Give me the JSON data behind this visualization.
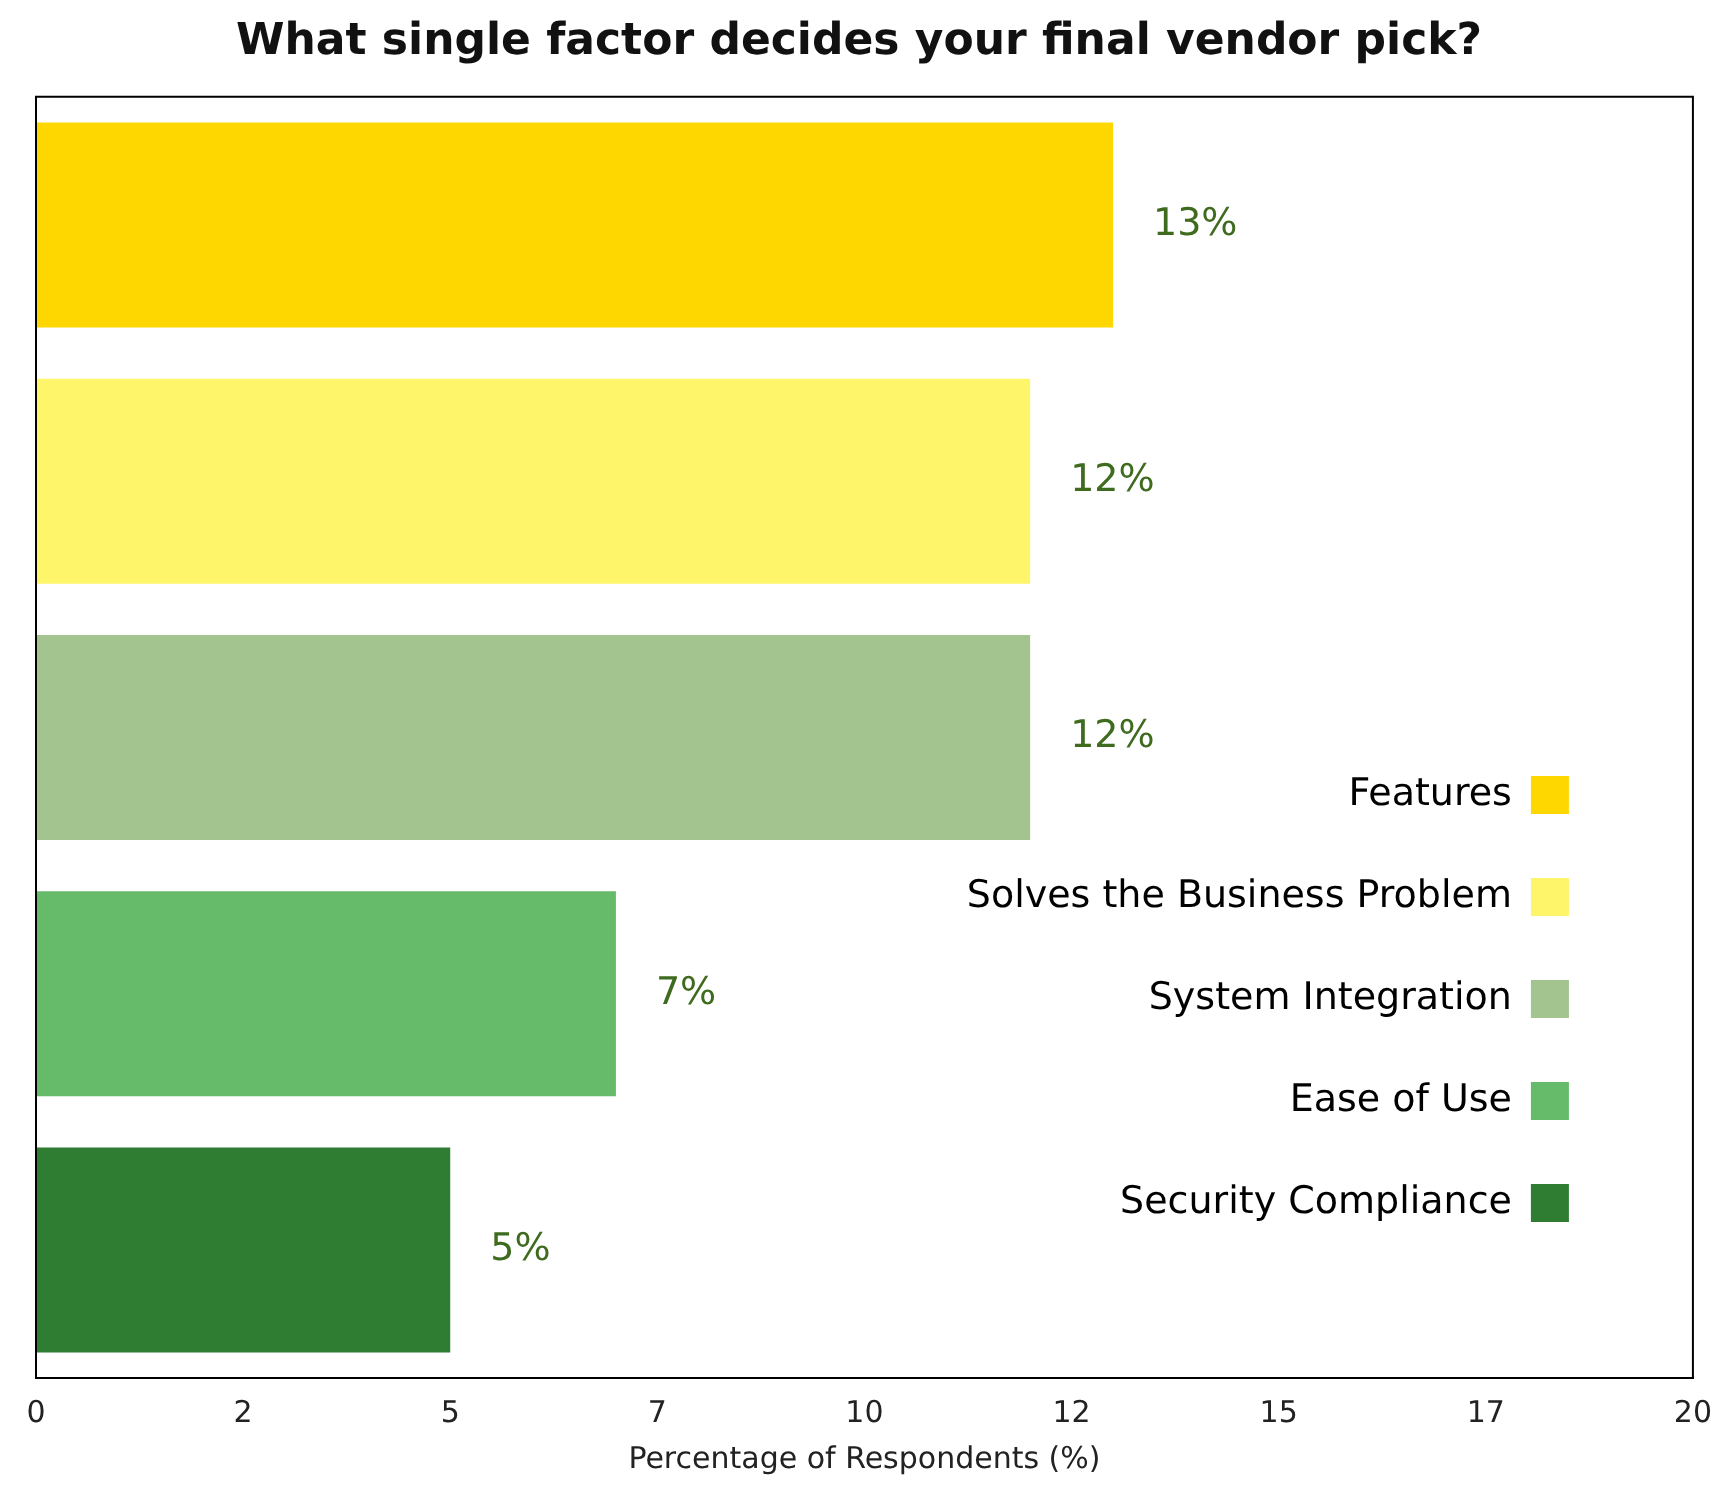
{
  "chart_data": {
    "type": "bar",
    "orientation": "horizontal",
    "title": "What single factor decides your final vendor pick?",
    "xlabel": "Percentage of Respondents (%)",
    "categories": [
      null,
      null,
      null,
      null,
      null
    ],
    "series": [
      {
        "name": "Features",
        "color": "#ffd700",
        "values": [
          13,
          null,
          null,
          null,
          null
        ],
        "value_labels": [
          "13%",
          null,
          null,
          null,
          null
        ]
      },
      {
        "name": "Solves the Business Problem",
        "color": "#fff56b",
        "values": [
          null,
          12,
          null,
          null,
          null
        ],
        "value_labels": [
          null,
          "12%",
          null,
          null,
          null
        ]
      },
      {
        "name": "System Integration",
        "color": "#a3c48e",
        "values": [
          null,
          null,
          12,
          null,
          null
        ],
        "value_labels": [
          null,
          null,
          "12%",
          null,
          null
        ]
      },
      {
        "name": "Ease of Use",
        "color": "#66bb6a",
        "values": [
          null,
          null,
          null,
          7,
          null
        ],
        "value_labels": [
          null,
          null,
          null,
          "7%",
          null
        ]
      },
      {
        "name": "Security Compliance",
        "color": "#2e7d32",
        "values": [
          null,
          null,
          null,
          null,
          5
        ],
        "value_labels": [
          null,
          null,
          null,
          null,
          "5%"
        ]
      }
    ],
    "xlim": [
      0,
      20
    ],
    "xticks": [
      0,
      {
        "value": 2.5,
        "label": "2"
      },
      5,
      {
        "value": 7.5,
        "label": "7"
      },
      10,
      {
        "value": 12.5,
        "label": "12"
      },
      15,
      {
        "value": 17.5,
        "label": "17"
      },
      20
    ],
    "tick_labels": "x",
    "grid": false,
    "stacked": true,
    "legend": "bottom right"
  }
}
